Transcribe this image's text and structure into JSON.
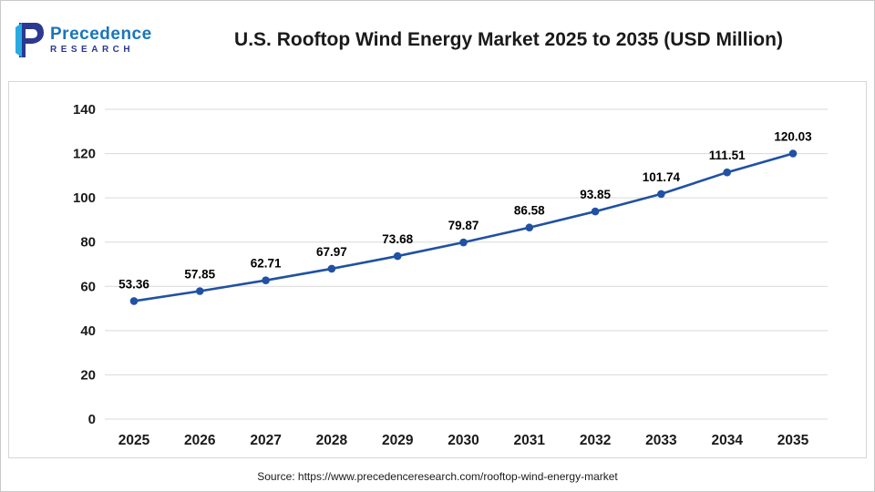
{
  "header": {
    "logo": {
      "line1": "Precedence",
      "line2": "RESEARCH"
    },
    "title": "U.S. Rooftop Wind Energy Market 2025 to 2035  (USD Million)"
  },
  "chart_data": {
    "type": "line",
    "title": "U.S. Rooftop Wind Energy Market 2025 to 2035 (USD Million)",
    "categories": [
      "2025",
      "2026",
      "2027",
      "2028",
      "2029",
      "2030",
      "2031",
      "2032",
      "2033",
      "2034",
      "2035"
    ],
    "series": [
      {
        "name": "U.S. Rooftop Wind Energy Market (USD Million)",
        "values": [
          53.36,
          57.85,
          62.71,
          67.97,
          73.68,
          79.87,
          86.58,
          93.85,
          101.74,
          111.51,
          120.03
        ]
      }
    ],
    "xlabel": "",
    "ylabel": "",
    "ylim": [
      0,
      140
    ],
    "yticks": [
      0,
      20,
      40,
      60,
      80,
      100,
      120,
      140
    ],
    "grid": true,
    "legend": "none",
    "line_color": "#2051a3",
    "marker_color": "#2051a3",
    "grid_color": "#d9d9d9",
    "tick_label_color": "#1a1a1a",
    "data_label_color": "#000000"
  },
  "footer": {
    "source": "Source: https://www.precedenceresearch.com/rooftop-wind-energy-market"
  }
}
